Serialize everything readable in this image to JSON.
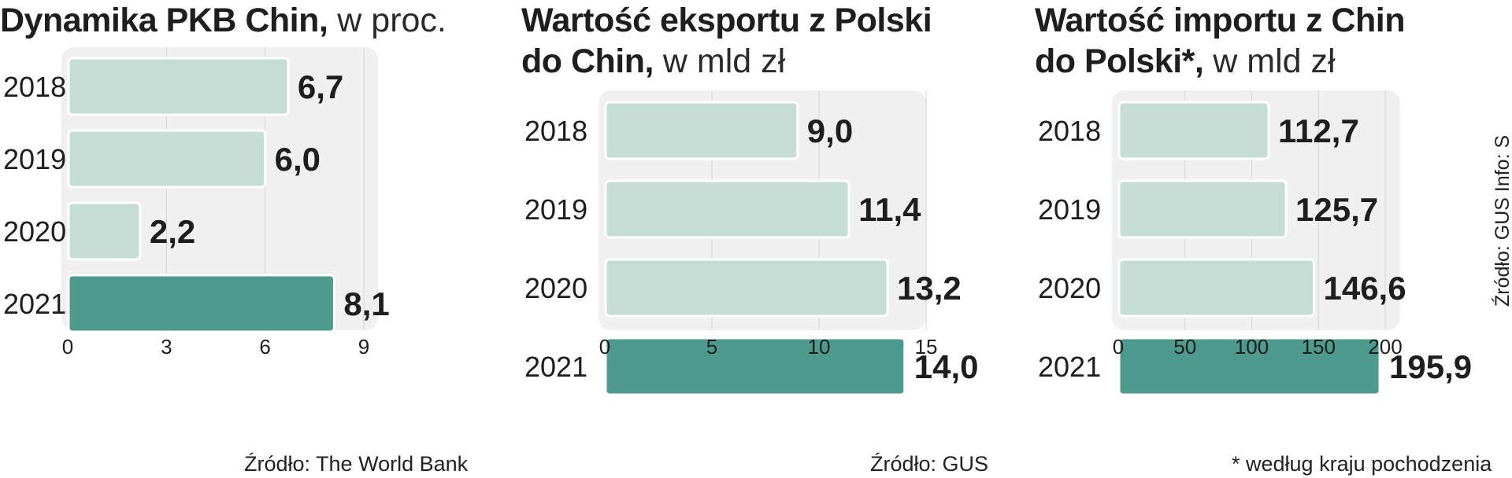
{
  "chart_data": [
    {
      "type": "bar",
      "orientation": "horizontal",
      "title": "Dynamika PKB Chin,",
      "title_suffix": "w proc.",
      "categories": [
        "2018",
        "2019",
        "2020",
        "2021"
      ],
      "values": [
        6.7,
        6.0,
        2.2,
        8.1
      ],
      "value_labels": [
        "6,7",
        "6,0",
        "2,2",
        "8,1"
      ],
      "xlim": [
        0,
        9
      ],
      "xticks": [
        0,
        3,
        6,
        9
      ],
      "grid": true,
      "highlight_index": 3,
      "source": "Źródło: The World Bank"
    },
    {
      "type": "bar",
      "orientation": "horizontal",
      "title": "Wartość eksportu z Polski do Chin,",
      "title_suffix": "w mld zł",
      "categories": [
        "2018",
        "2019",
        "2020",
        "2021"
      ],
      "values": [
        9.0,
        11.4,
        13.2,
        14.0
      ],
      "value_labels": [
        "9,0",
        "11,4",
        "13,2",
        "14,0"
      ],
      "xlim": [
        0,
        15
      ],
      "xticks": [
        0,
        5,
        10,
        15
      ],
      "grid": true,
      "highlight_index": 3,
      "source": "Źródło: GUS"
    },
    {
      "type": "bar",
      "orientation": "horizontal",
      "title": "Wartość importu z Chin do Polski*,",
      "title_suffix": "w mld zł",
      "categories": [
        "2018",
        "2019",
        "2020",
        "2021"
      ],
      "values": [
        112.7,
        125.7,
        146.6,
        195.9
      ],
      "value_labels": [
        "112,7",
        "125,7",
        "146,6",
        "195,9"
      ],
      "xlim": [
        0,
        200
      ],
      "xticks": [
        0,
        50,
        100,
        150,
        200
      ],
      "grid": true,
      "highlight_index": 3,
      "footnote": "* według kraju pochodzenia"
    }
  ],
  "credit": "Źródło: GUS   Info: S",
  "colors": {
    "bar": "#c5ddd5",
    "bar_highlight": "#4f9a8e",
    "plot_bg": "#f0f0f0",
    "grid": "#d8d8d8",
    "text": "#1e1e1e"
  }
}
